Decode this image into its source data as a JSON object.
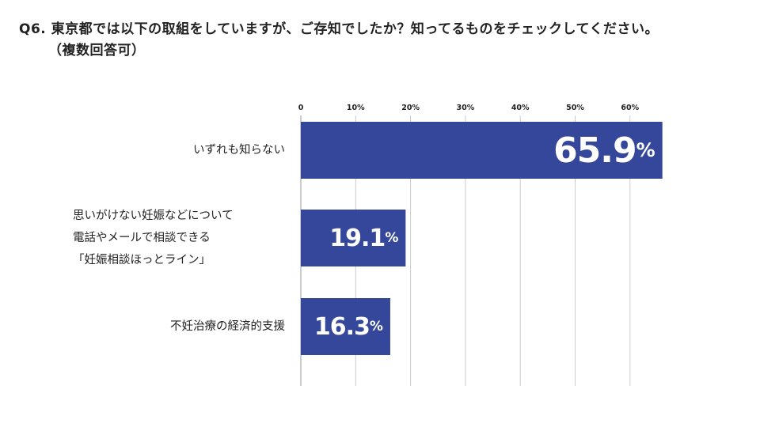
{
  "question": {
    "number": "Q6.",
    "text": "東京都では以下の取組をしていますが、ご存知でしたか？知ってるものをチェックしてください。",
    "note": "（複数回答可）"
  },
  "chart_data": {
    "type": "bar",
    "orientation": "horizontal",
    "title": "東京都では以下の取組をしていますが、ご存知でしたか？知ってるものをチェックしてください。（複数回答可）",
    "xlabel": "",
    "ylabel": "",
    "xlim": [
      0,
      70
    ],
    "ticks": [
      0,
      10,
      20,
      30,
      40,
      50,
      60
    ],
    "tick_labels": [
      "0",
      "10%",
      "20%",
      "30%",
      "40%",
      "50%",
      "60%"
    ],
    "categories": [
      [
        "いずれも知らない"
      ],
      [
        "思いがけない妊娠などについて",
        "電話やメールで相談できる",
        "「妊娠相談ほっとライン」"
      ],
      [
        "不妊治療の経済的支援"
      ]
    ],
    "values": [
      65.9,
      19.1,
      16.3
    ],
    "value_labels": [
      "65.9",
      "19.1",
      "16.3"
    ],
    "unit": "%",
    "colors": {
      "bar": "#34479a",
      "grid": "#cccccc",
      "text": "#222222",
      "label": "#ffffff"
    }
  }
}
